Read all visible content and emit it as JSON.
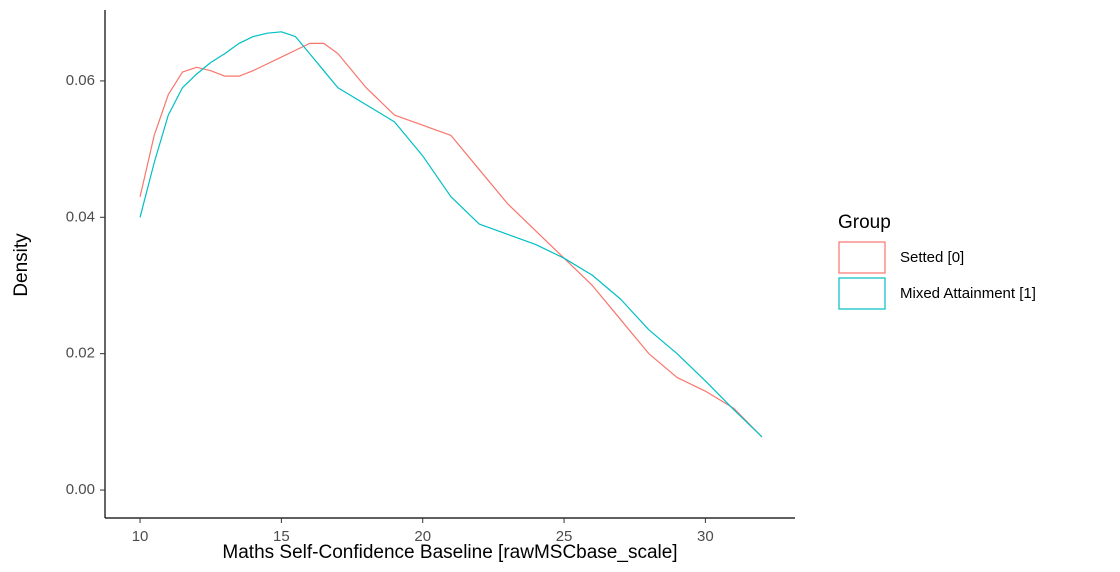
{
  "chart_data": {
    "type": "line",
    "xlabel": "Maths Self-Confidence Baseline [rawMSCbase_scale]",
    "ylabel": "Density",
    "legend_title": "Group",
    "legend_position": "right",
    "x": [
      10,
      10.5,
      11,
      11.5,
      12,
      12.5,
      13,
      13.5,
      14,
      14.5,
      15,
      15.5,
      16,
      16.5,
      17,
      18,
      19,
      20,
      21,
      22,
      23,
      24,
      25,
      26,
      27,
      28,
      29,
      30,
      31,
      32
    ],
    "series": [
      {
        "name": "Setted [0]",
        "color": "#f8766d",
        "values": [
          0.043,
          0.052,
          0.058,
          0.0613,
          0.062,
          0.0615,
          0.0607,
          0.0607,
          0.0615,
          0.0625,
          0.0635,
          0.0645,
          0.0655,
          0.0655,
          0.064,
          0.059,
          0.055,
          0.0535,
          0.052,
          0.047,
          0.042,
          0.038,
          0.034,
          0.03,
          0.025,
          0.02,
          0.0165,
          0.0145,
          0.012,
          0.0078
        ]
      },
      {
        "name": "Mixed Attainment [1]",
        "color": "#00bfc4",
        "values": [
          0.04,
          0.048,
          0.055,
          0.059,
          0.061,
          0.0627,
          0.064,
          0.0655,
          0.0665,
          0.067,
          0.0672,
          0.0665,
          0.064,
          0.0615,
          0.059,
          0.0565,
          0.054,
          0.049,
          0.043,
          0.039,
          0.0375,
          0.036,
          0.034,
          0.0315,
          0.028,
          0.0235,
          0.02,
          0.016,
          0.0118,
          0.0078
        ]
      }
    ],
    "xlim": [
      8.76,
      33.17
    ],
    "xticks": [
      10,
      15,
      20,
      25,
      30
    ],
    "ylim": [
      -0.0041,
      0.0704
    ],
    "yticks": [
      {
        "value": 0,
        "label": "0.00"
      },
      {
        "value": 0.02,
        "label": "0.02"
      },
      {
        "value": 0.04,
        "label": "0.04"
      },
      {
        "value": 0.06,
        "label": "0.06"
      }
    ],
    "grid": false
  }
}
